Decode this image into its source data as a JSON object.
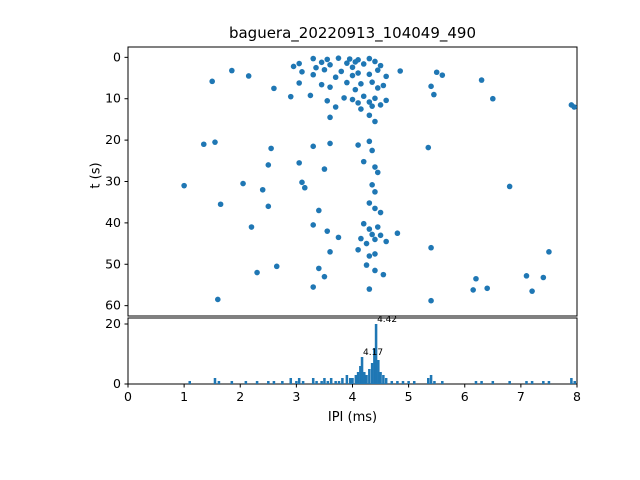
{
  "figure_title": "baguera_20220913_104049_490",
  "chart_data": [
    {
      "type": "scatter",
      "title": "baguera_20220913_104049_490",
      "xlabel": "",
      "ylabel": "t (s)",
      "xlim": [
        0,
        8
      ],
      "ylim": [
        62.5,
        -2.5
      ],
      "y_axis_inverted": true,
      "marker_color": "#1f77b4",
      "y_ticks": [
        0,
        10,
        20,
        30,
        40,
        50,
        60
      ],
      "points": [
        [
          3.3,
          0.3
        ],
        [
          3.55,
          0.5
        ],
        [
          3.75,
          0.2
        ],
        [
          3.95,
          0.4
        ],
        [
          4.1,
          0.6
        ],
        [
          4.3,
          0.3
        ],
        [
          3.45,
          1.2
        ],
        [
          3.05,
          1.5
        ],
        [
          3.6,
          1.8
        ],
        [
          3.9,
          1.4
        ],
        [
          4.05,
          1.1
        ],
        [
          4.2,
          1.6
        ],
        [
          4.4,
          1.0
        ],
        [
          2.95,
          2.2
        ],
        [
          3.35,
          2.5
        ],
        [
          4.5,
          2.0
        ],
        [
          4.0,
          2.4
        ],
        [
          1.85,
          3.2
        ],
        [
          3.1,
          3.5
        ],
        [
          3.5,
          3.0
        ],
        [
          3.8,
          3.4
        ],
        [
          4.1,
          3.8
        ],
        [
          4.45,
          3.1
        ],
        [
          4.85,
          3.3
        ],
        [
          5.5,
          3.6
        ],
        [
          2.15,
          4.5
        ],
        [
          3.3,
          4.2
        ],
        [
          3.7,
          4.8
        ],
        [
          4.0,
          4.4
        ],
        [
          4.3,
          4.1
        ],
        [
          4.6,
          4.6
        ],
        [
          5.6,
          4.3
        ],
        [
          1.5,
          5.8
        ],
        [
          3.05,
          6.2
        ],
        [
          3.45,
          6.6
        ],
        [
          3.9,
          6.1
        ],
        [
          4.15,
          6.4
        ],
        [
          4.35,
          6.0
        ],
        [
          4.55,
          6.8
        ],
        [
          6.3,
          5.5
        ],
        [
          2.6,
          7.5
        ],
        [
          3.6,
          7.2
        ],
        [
          4.05,
          7.8
        ],
        [
          4.45,
          7.4
        ],
        [
          5.4,
          7.0
        ],
        [
          2.9,
          9.5
        ],
        [
          3.25,
          9.2
        ],
        [
          3.55,
          10.5
        ],
        [
          3.85,
          9.8
        ],
        [
          4.0,
          10.2
        ],
        [
          4.1,
          11.0
        ],
        [
          4.2,
          9.4
        ],
        [
          4.3,
          10.8
        ],
        [
          4.4,
          9.9
        ],
        [
          4.5,
          11.5
        ],
        [
          4.6,
          10.4
        ],
        [
          3.7,
          12.0
        ],
        [
          4.15,
          12.5
        ],
        [
          4.35,
          11.8
        ],
        [
          6.5,
          10.0
        ],
        [
          5.45,
          9.0
        ],
        [
          7.9,
          11.5
        ],
        [
          7.95,
          12.0
        ],
        [
          3.6,
          14.5
        ],
        [
          4.3,
          14.0
        ],
        [
          4.4,
          15.5
        ],
        [
          1.35,
          21.0
        ],
        [
          1.55,
          20.5
        ],
        [
          2.55,
          22.0
        ],
        [
          3.3,
          21.5
        ],
        [
          3.6,
          20.8
        ],
        [
          4.1,
          21.2
        ],
        [
          4.3,
          20.3
        ],
        [
          4.35,
          22.5
        ],
        [
          5.35,
          21.8
        ],
        [
          2.5,
          26.0
        ],
        [
          3.05,
          25.5
        ],
        [
          3.5,
          27.0
        ],
        [
          4.2,
          25.2
        ],
        [
          4.4,
          26.5
        ],
        [
          4.45,
          27.8
        ],
        [
          1.0,
          31.0
        ],
        [
          2.05,
          30.5
        ],
        [
          2.4,
          32.0
        ],
        [
          3.1,
          30.2
        ],
        [
          3.15,
          31.5
        ],
        [
          4.35,
          30.8
        ],
        [
          4.4,
          32.5
        ],
        [
          6.8,
          31.2
        ],
        [
          1.65,
          35.5
        ],
        [
          2.5,
          36.0
        ],
        [
          3.4,
          37.0
        ],
        [
          4.3,
          35.2
        ],
        [
          4.4,
          36.5
        ],
        [
          4.5,
          37.5
        ],
        [
          2.2,
          41.0
        ],
        [
          3.3,
          40.5
        ],
        [
          3.55,
          42.0
        ],
        [
          3.75,
          43.5
        ],
        [
          4.2,
          40.2
        ],
        [
          4.3,
          41.5
        ],
        [
          4.35,
          42.8
        ],
        [
          4.4,
          44.0
        ],
        [
          4.45,
          41.0
        ],
        [
          4.5,
          43.0
        ],
        [
          4.6,
          44.5
        ],
        [
          4.8,
          42.5
        ],
        [
          4.25,
          45.0
        ],
        [
          4.15,
          43.8
        ],
        [
          3.6,
          47.0
        ],
        [
          4.1,
          46.5
        ],
        [
          4.3,
          48.0
        ],
        [
          4.4,
          47.5
        ],
        [
          5.4,
          46.0
        ],
        [
          7.5,
          47.0
        ],
        [
          2.3,
          52.0
        ],
        [
          2.65,
          50.5
        ],
        [
          3.4,
          51.0
        ],
        [
          3.5,
          53.0
        ],
        [
          4.25,
          50.2
        ],
        [
          4.4,
          51.5
        ],
        [
          4.55,
          52.5
        ],
        [
          6.2,
          53.5
        ],
        [
          7.1,
          52.8
        ],
        [
          7.4,
          53.2
        ],
        [
          1.6,
          58.5
        ],
        [
          3.3,
          55.5
        ],
        [
          4.3,
          56.0
        ],
        [
          5.4,
          58.8
        ],
        [
          6.15,
          56.2
        ],
        [
          6.4,
          55.8
        ],
        [
          7.2,
          56.5
        ]
      ]
    },
    {
      "type": "bar",
      "xlabel": "IPI (ms)",
      "ylabel": "",
      "xlim": [
        0,
        8
      ],
      "ylim": [
        0,
        22
      ],
      "bar_color": "#1f77b4",
      "bar_width": 0.045,
      "x_ticks": [
        0,
        1,
        2,
        3,
        4,
        5,
        6,
        7,
        8
      ],
      "y_ticks": [
        0,
        20
      ],
      "bars": [
        [
          1.1,
          1
        ],
        [
          1.55,
          2
        ],
        [
          1.62,
          1
        ],
        [
          1.85,
          1
        ],
        [
          2.1,
          1
        ],
        [
          2.3,
          1
        ],
        [
          2.5,
          1
        ],
        [
          2.6,
          1
        ],
        [
          2.75,
          1
        ],
        [
          2.9,
          2
        ],
        [
          3.0,
          1
        ],
        [
          3.05,
          2
        ],
        [
          3.12,
          1
        ],
        [
          3.3,
          2
        ],
        [
          3.36,
          1
        ],
        [
          3.45,
          1
        ],
        [
          3.5,
          2
        ],
        [
          3.56,
          1
        ],
        [
          3.62,
          2
        ],
        [
          3.7,
          1
        ],
        [
          3.76,
          1
        ],
        [
          3.82,
          2
        ],
        [
          3.9,
          3
        ],
        [
          3.96,
          2
        ],
        [
          4.0,
          2
        ],
        [
          4.06,
          3
        ],
        [
          4.1,
          4
        ],
        [
          4.14,
          6
        ],
        [
          4.17,
          9
        ],
        [
          4.21,
          4
        ],
        [
          4.25,
          3
        ],
        [
          4.3,
          5
        ],
        [
          4.35,
          7
        ],
        [
          4.39,
          12
        ],
        [
          4.42,
          20
        ],
        [
          4.46,
          8
        ],
        [
          4.5,
          4
        ],
        [
          4.55,
          3
        ],
        [
          4.6,
          2
        ],
        [
          4.7,
          1
        ],
        [
          4.8,
          1
        ],
        [
          4.9,
          1
        ],
        [
          5.0,
          1
        ],
        [
          5.1,
          1
        ],
        [
          5.35,
          2
        ],
        [
          5.4,
          3
        ],
        [
          5.46,
          1
        ],
        [
          5.6,
          1
        ],
        [
          6.2,
          1
        ],
        [
          6.3,
          1
        ],
        [
          6.5,
          1
        ],
        [
          6.8,
          1
        ],
        [
          7.1,
          1
        ],
        [
          7.2,
          1
        ],
        [
          7.4,
          1
        ],
        [
          7.5,
          1
        ],
        [
          7.9,
          2
        ],
        [
          7.96,
          1
        ]
      ],
      "annotations": [
        {
          "text": "4.42",
          "x": 4.42,
          "y": 20
        },
        {
          "text": "4.17",
          "x": 4.17,
          "y": 9
        }
      ]
    }
  ]
}
